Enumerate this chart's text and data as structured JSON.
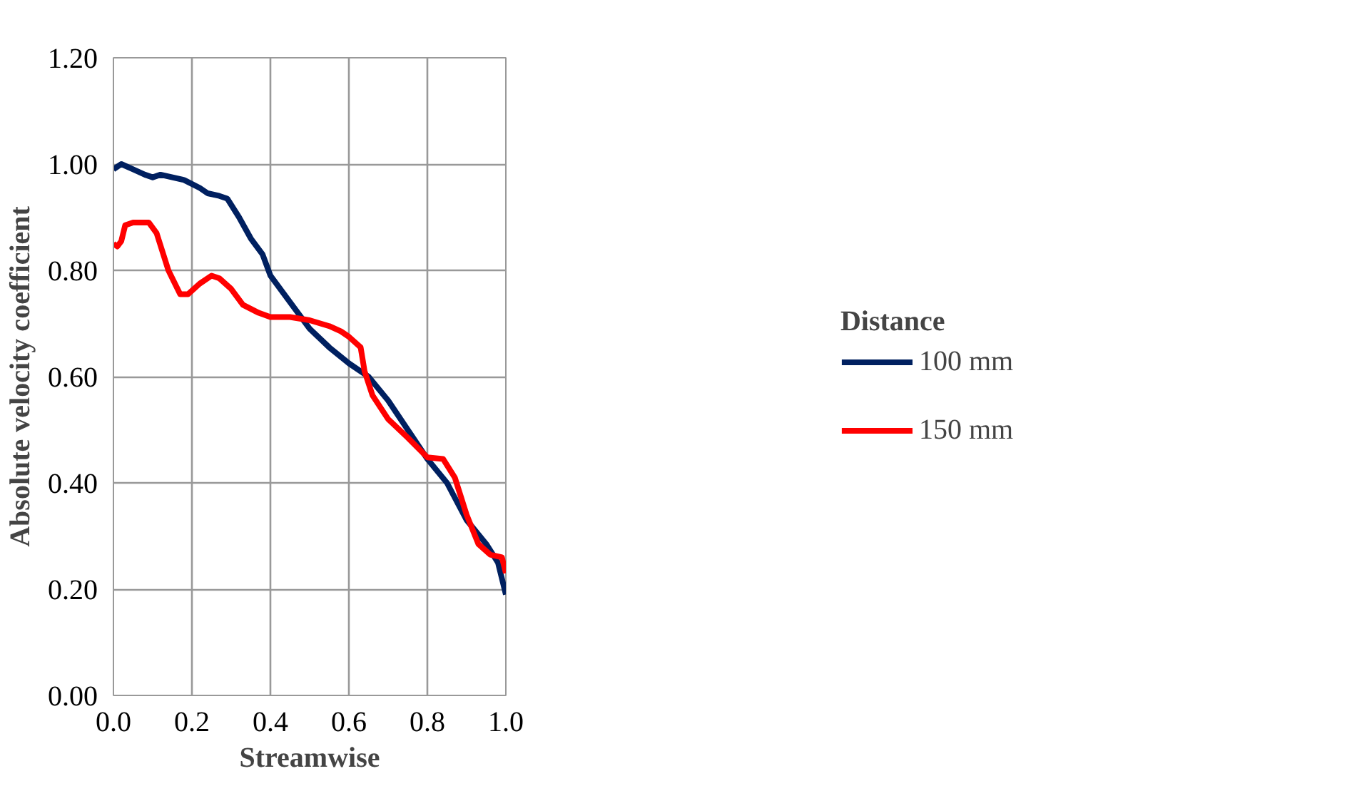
{
  "chart_data": {
    "type": "line",
    "xlabel": "Streamwise",
    "ylabel": "Absolute velocity coefficient",
    "legend_title": "Distance",
    "legend": "right",
    "grid": true,
    "xlim": [
      0,
      1
    ],
    "ylim": [
      0,
      1.2
    ],
    "xticks": [
      {
        "value": 0,
        "label": "0.0"
      },
      {
        "value": 0.2,
        "label": "0.2"
      },
      {
        "value": 0.4,
        "label": "0.4"
      },
      {
        "value": 0.6,
        "label": "0.6"
      },
      {
        "value": 0.8,
        "label": "0.8"
      },
      {
        "value": 1,
        "label": "1.0"
      }
    ],
    "yticks": [
      {
        "value": 0,
        "label": "0.00"
      },
      {
        "value": 0.2,
        "label": "0.20"
      },
      {
        "value": 0.4,
        "label": "0.40"
      },
      {
        "value": 0.6,
        "label": "0.60"
      },
      {
        "value": 0.8,
        "label": "0.80"
      },
      {
        "value": 1,
        "label": "1.00"
      },
      {
        "value": 1.2,
        "label": "1.20"
      }
    ],
    "series": [
      {
        "name": "100 mm",
        "color": "#002060",
        "x": [
          0,
          0.02,
          0.05,
          0.08,
          0.1,
          0.12,
          0.18,
          0.22,
          0.24,
          0.27,
          0.29,
          0.32,
          0.35,
          0.38,
          0.4,
          0.45,
          0.5,
          0.55,
          0.6,
          0.65,
          0.7,
          0.75,
          0.8,
          0.85,
          0.9,
          0.95,
          0.98,
          1.0
        ],
        "values": [
          0.99,
          1.0,
          0.99,
          0.98,
          0.975,
          0.98,
          0.97,
          0.955,
          0.945,
          0.94,
          0.935,
          0.9,
          0.86,
          0.83,
          0.79,
          0.74,
          0.69,
          0.655,
          0.625,
          0.6,
          0.555,
          0.5,
          0.445,
          0.4,
          0.33,
          0.285,
          0.25,
          0.19
        ]
      },
      {
        "name": "150 mm",
        "color": "#ff0000",
        "x": [
          0,
          0.01,
          0.02,
          0.03,
          0.05,
          0.09,
          0.11,
          0.14,
          0.17,
          0.19,
          0.22,
          0.25,
          0.27,
          0.3,
          0.33,
          0.37,
          0.4,
          0.45,
          0.5,
          0.55,
          0.58,
          0.6,
          0.63,
          0.64,
          0.66,
          0.7,
          0.75,
          0.8,
          0.84,
          0.87,
          0.9,
          0.93,
          0.96,
          0.99,
          1.0
        ],
        "values": [
          0.85,
          0.845,
          0.855,
          0.885,
          0.89,
          0.89,
          0.87,
          0.8,
          0.755,
          0.755,
          0.775,
          0.79,
          0.785,
          0.765,
          0.735,
          0.72,
          0.712,
          0.712,
          0.706,
          0.695,
          0.685,
          0.675,
          0.655,
          0.61,
          0.565,
          0.52,
          0.485,
          0.448,
          0.445,
          0.41,
          0.34,
          0.285,
          0.265,
          0.26,
          0.23
        ]
      }
    ]
  }
}
